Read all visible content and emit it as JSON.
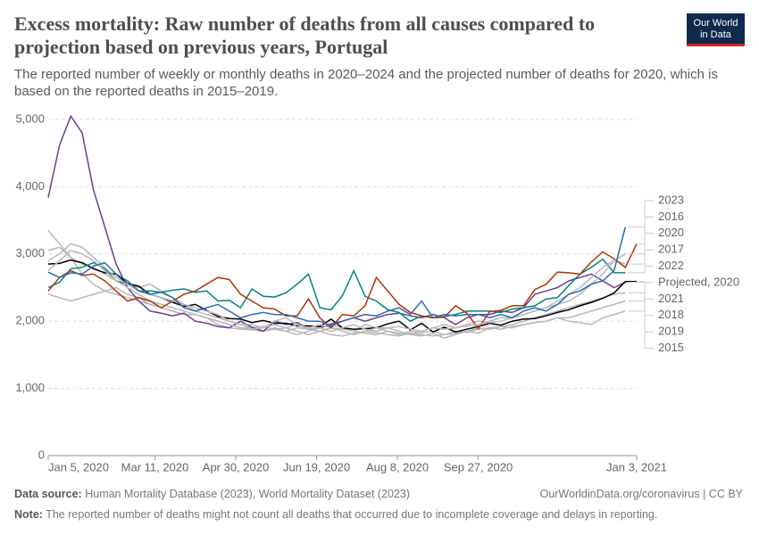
{
  "logo": [
    "Our World",
    "in Data"
  ],
  "chart_data": {
    "type": "line",
    "title": "Excess mortality: Raw number of deaths from all causes compared to projection based on previous years, Portugal",
    "subtitle": "The reported number of weekly or monthly deaths in 2020–2024 and the projected number of deaths for 2020, which is based on the reported deaths in 2015–2019.",
    "x": [
      "2020-01-05",
      "2020-01-12",
      "2020-01-19",
      "2020-01-26",
      "2020-02-02",
      "2020-02-09",
      "2020-02-16",
      "2020-02-23",
      "2020-03-01",
      "2020-03-08",
      "2020-03-15",
      "2020-03-22",
      "2020-03-29",
      "2020-04-05",
      "2020-04-12",
      "2020-04-19",
      "2020-04-26",
      "2020-05-03",
      "2020-05-10",
      "2020-05-17",
      "2020-05-24",
      "2020-05-31",
      "2020-06-07",
      "2020-06-14",
      "2020-06-21",
      "2020-06-28",
      "2020-07-05",
      "2020-07-12",
      "2020-07-19",
      "2020-07-26",
      "2020-08-02",
      "2020-08-09",
      "2020-08-16",
      "2020-08-23",
      "2020-08-30",
      "2020-09-06",
      "2020-09-13",
      "2020-09-20",
      "2020-09-27",
      "2020-10-04",
      "2020-10-11",
      "2020-10-18",
      "2020-10-25",
      "2020-11-01",
      "2020-11-08",
      "2020-11-15",
      "2020-11-22",
      "2020-11-29",
      "2020-12-06",
      "2020-12-13",
      "2020-12-20",
      "2020-12-27",
      "2021-01-03"
    ],
    "xlim": [
      "2020-01-05",
      "2021-01-03"
    ],
    "xticks": [
      {
        "value": "2020-01-05",
        "label": "Jan 5, 2020"
      },
      {
        "value": "2020-03-11",
        "label": "Mar 11, 2020"
      },
      {
        "value": "2020-04-30",
        "label": "Apr 30, 2020"
      },
      {
        "value": "2020-06-19",
        "label": "Jun 19, 2020"
      },
      {
        "value": "2020-08-08",
        "label": "Aug 8, 2020"
      },
      {
        "value": "2020-09-27",
        "label": "Sep 27, 2020"
      },
      {
        "value": "2021-01-03",
        "label": "Jan 3, 2021"
      }
    ],
    "ylim": [
      0,
      5000
    ],
    "yticks": [
      0,
      {
        "value": 1000,
        "label": "1,000"
      },
      {
        "value": 2000,
        "label": "2,000"
      },
      {
        "value": 3000,
        "label": "3,000"
      },
      {
        "value": 4000,
        "label": "4,000"
      },
      {
        "value": 5000,
        "label": "5,000"
      }
    ],
    "grid": true,
    "series": [
      {
        "name": "2023",
        "color": "#2c6bb2",
        "values": [
          2730,
          2650,
          2720,
          2700,
          2820,
          2870,
          2700,
          2600,
          2450,
          2400,
          2430,
          2350,
          2200,
          2150,
          2200,
          2250,
          2150,
          2050,
          2100,
          2130,
          2100,
          2100,
          2050,
          2000,
          2000,
          1930,
          2000,
          2050,
          2100,
          2080,
          2150,
          2200,
          2100,
          2300,
          2050,
          2100,
          2080,
          2100,
          2100,
          2050,
          2100,
          2050,
          2150,
          2200,
          2150,
          2250,
          2400,
          2450,
          2550,
          2600,
          2750,
          3400,
          null
        ]
      },
      {
        "name": "2016",
        "color": "#b8b8b8",
        "values": [
          2900,
          3000,
          3150,
          3100,
          2950,
          2800,
          2650,
          2550,
          2450,
          2400,
          2350,
          2300,
          2250,
          2200,
          2150,
          2100,
          2000,
          1950,
          1950,
          1900,
          1950,
          1900,
          1950,
          1880,
          1900,
          1850,
          1900,
          1950,
          1880,
          1850,
          1900,
          1920,
          1880,
          1850,
          1900,
          1950,
          1900,
          1930,
          1950,
          2000,
          2050,
          2050,
          2100,
          2150,
          2200,
          2250,
          2300,
          2400,
          2550,
          2700,
          2900,
          3000,
          null
        ]
      },
      {
        "name": "2020",
        "color": "#b13507",
        "values": [
          2450,
          2650,
          2750,
          2680,
          2700,
          2600,
          2450,
          2300,
          2350,
          2300,
          2200,
          2300,
          2400,
          2450,
          2550,
          2650,
          2620,
          2400,
          2300,
          2200,
          2180,
          2080,
          2080,
          2330,
          2050,
          1900,
          2100,
          2080,
          2230,
          2650,
          2450,
          2250,
          2130,
          2080,
          2050,
          2060,
          2230,
          2120,
          1890,
          2140,
          2160,
          2230,
          2230,
          2470,
          2550,
          2730,
          2720,
          2700,
          2880,
          3030,
          2930,
          2800,
          3150
        ]
      },
      {
        "name": "2017",
        "color": "#b8b8b8",
        "values": [
          2750,
          2900,
          3050,
          3000,
          2900,
          2750,
          2600,
          2500,
          2400,
          2300,
          2250,
          2200,
          2150,
          2100,
          2050,
          2000,
          1950,
          1900,
          1880,
          1900,
          2000,
          2050,
          1950,
          1900,
          1950,
          1900,
          1850,
          1800,
          1850,
          1900,
          1900,
          1850,
          1800,
          1850,
          1900,
          1880,
          1900,
          1950,
          2000,
          1980,
          2000,
          2050,
          2100,
          2150,
          2200,
          2300,
          2400,
          2500,
          2650,
          2800,
          2900,
          2850,
          null
        ]
      },
      {
        "name": "2022",
        "color": "#00847e",
        "values": [
          2500,
          2580,
          2780,
          2800,
          2870,
          2780,
          2600,
          2550,
          2450,
          2450,
          2430,
          2460,
          2480,
          2430,
          2450,
          2300,
          2310,
          2200,
          2480,
          2370,
          2360,
          2420,
          2550,
          2700,
          2200,
          2170,
          2380,
          2750,
          2370,
          2300,
          2170,
          2130,
          2000,
          2080,
          2050,
          2070,
          2100,
          2150,
          2150,
          2150,
          2130,
          2180,
          2200,
          2230,
          2330,
          2350,
          2530,
          2700,
          2800,
          2920,
          2720,
          2720,
          null
        ]
      },
      {
        "name": "Projected, 2020",
        "color": "#000000",
        "values": [
          2850,
          2860,
          2910,
          2870,
          2780,
          2720,
          2700,
          2560,
          2520,
          2400,
          2350,
          2280,
          2220,
          2250,
          2160,
          2070,
          2040,
          2030,
          1980,
          2010,
          1970,
          1970,
          1930,
          1930,
          1920,
          2030,
          1900,
          1880,
          1890,
          1900,
          1960,
          2000,
          1870,
          1970,
          1840,
          1910,
          1840,
          1880,
          1920,
          1970,
          1940,
          2000,
          2030,
          2040,
          2080,
          2130,
          2170,
          2230,
          2280,
          2340,
          2420,
          2590,
          2590
        ]
      },
      {
        "name": "2021",
        "color": "#6d3e91",
        "values": [
          3840,
          4620,
          5050,
          4800,
          3950,
          3400,
          2850,
          2500,
          2300,
          2150,
          2120,
          2080,
          2120,
          2000,
          1970,
          1920,
          1900,
          2000,
          1910,
          1850,
          2000,
          1950,
          1980,
          1880,
          1900,
          1960,
          2000,
          2050,
          2000,
          2050,
          2100,
          2120,
          2080,
          2050,
          2100,
          2050,
          1950,
          2050,
          2100,
          2100,
          2150,
          2130,
          2200,
          2400,
          2450,
          2500,
          2600,
          2650,
          2700,
          2600,
          2500,
          2580,
          null
        ]
      },
      {
        "name": "2018",
        "color": "#b8b8b8",
        "values": [
          3050,
          3100,
          2950,
          2850,
          2800,
          2700,
          2600,
          2550,
          2500,
          2550,
          2450,
          2350,
          2250,
          2150,
          2100,
          2050,
          2000,
          1950,
          1900,
          1850,
          1880,
          1900,
          1850,
          1800,
          1850,
          1900,
          1880,
          1850,
          1950,
          1900,
          1850,
          1800,
          1850,
          1830,
          1850,
          1800,
          1820,
          1850,
          1900,
          1880,
          1920,
          1950,
          2000,
          2050,
          2100,
          2150,
          2200,
          2250,
          2300,
          2350,
          2400,
          2420,
          null
        ]
      },
      {
        "name": "2019",
        "color": "#b8b8b8",
        "values": [
          2400,
          2350,
          2300,
          2350,
          2400,
          2450,
          2500,
          2400,
          2350,
          2250,
          2200,
          2150,
          2100,
          2100,
          2050,
          2000,
          1950,
          1900,
          1900,
          1920,
          1880,
          1850,
          1900,
          1880,
          1850,
          1800,
          1780,
          1820,
          1850,
          1830,
          1800,
          1780,
          1820,
          1800,
          1780,
          1800,
          1850,
          1830,
          1880,
          1900,
          1920,
          1900,
          1950,
          1980,
          2000,
          2050,
          2050,
          2100,
          2150,
          2200,
          2250,
          2300,
          null
        ]
      },
      {
        "name": "2015",
        "color": "#b8b8b8",
        "values": [
          3350,
          3150,
          2950,
          2700,
          2550,
          2450,
          2400,
          2350,
          2300,
          2250,
          2200,
          2150,
          2100,
          2100,
          2050,
          1950,
          1900,
          1880,
          1870,
          1850,
          1900,
          1850,
          1800,
          1850,
          1900,
          1950,
          1900,
          1850,
          1820,
          1800,
          1850,
          1820,
          1800,
          1780,
          1820,
          1750,
          1800,
          1850,
          1820,
          1900,
          1880,
          1920,
          1950,
          1980,
          2000,
          2050,
          2000,
          1980,
          1950,
          2050,
          2100,
          2150,
          null
        ]
      }
    ]
  },
  "footer": {
    "source_label": "Data source:",
    "source": "Human Mortality Database (2023), World Mortality Dataset (2023)",
    "url": "OurWorldinData.org/coronavirus | CC BY",
    "note_label": "Note:",
    "note": "The reported number of deaths might not count all deaths that occurred due to incomplete coverage and delays in reporting."
  }
}
